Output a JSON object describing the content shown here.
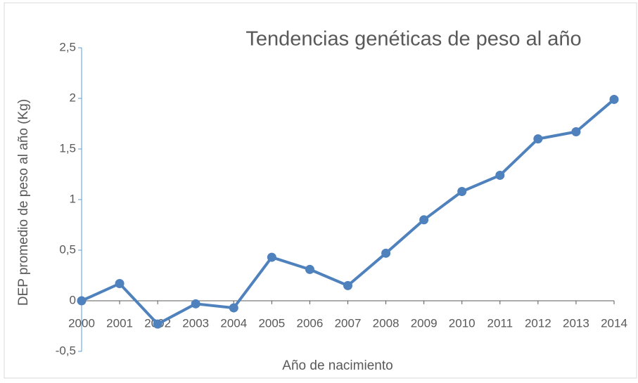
{
  "chart_data": {
    "type": "line",
    "title": "Tendencias genéticas de peso al año",
    "x_label": "Año de nacimiento",
    "y_label": "DEP promedio de peso al año (Kg)",
    "categories": [
      "2000",
      "2001",
      "2002",
      "2003",
      "2004",
      "2005",
      "2006",
      "2007",
      "2008",
      "2009",
      "2010",
      "2011",
      "2012",
      "2013",
      "2014"
    ],
    "series": [
      {
        "name": "DEP",
        "color": "#4f81bd",
        "values": [
          0,
          0.17,
          -0.23,
          -0.03,
          -0.07,
          0.43,
          0.31,
          0.15,
          0.47,
          0.8,
          1.08,
          1.24,
          1.6,
          1.67,
          1.99
        ]
      }
    ],
    "ylim": [
      -0.5,
      2.5
    ],
    "yticks": [
      {
        "value": -0.5,
        "label": "-0,5"
      },
      0,
      {
        "value": 0.5,
        "label": "0,5"
      },
      1,
      {
        "value": 1.5,
        "label": "1,5"
      },
      2,
      {
        "value": 2.5,
        "label": "2,5"
      }
    ],
    "grid": false
  }
}
